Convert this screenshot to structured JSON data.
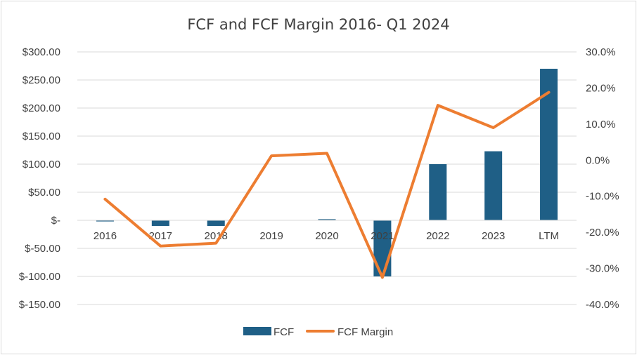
{
  "chart_data": {
    "type": "bar",
    "title": "FCF and FCF Margin 2016- Q1 2024",
    "categories": [
      "2016",
      "2017",
      "2018",
      "2019",
      "2020",
      "2021",
      "2022",
      "2023",
      "LTM"
    ],
    "series": [
      {
        "name": "FCF",
        "type": "bar",
        "axis": "left",
        "color": "#1f5f86",
        "values": [
          -2,
          -10,
          -10,
          0,
          2,
          -100,
          100,
          123,
          270
        ]
      },
      {
        "name": "FCF Margin",
        "type": "line",
        "axis": "right",
        "color": "#ed7d31",
        "values": [
          -10.8,
          -23.8,
          -23.0,
          1.2,
          1.9,
          -32.5,
          15.2,
          9.0,
          18.8
        ]
      }
    ],
    "left_axis": {
      "ylim": [
        -150,
        300
      ],
      "ticks": [
        300,
        250,
        200,
        150,
        100,
        50,
        0,
        -50,
        -100,
        -150
      ],
      "tick_labels": [
        "$300.00",
        "$250.00",
        "$200.00",
        "$150.00",
        "$100.00",
        "$50.00",
        "$-",
        "$-50.00",
        "$-100.00",
        "$-150.00"
      ]
    },
    "right_axis": {
      "ylim": [
        -40,
        30
      ],
      "tick_labels": [
        "30.0%",
        "20.0%",
        "10.0%",
        "0.0%",
        "-10.0%",
        "-20.0%",
        "-30.0%",
        "-40.0%"
      ]
    },
    "grid": true,
    "legend": "bottom",
    "legend_entries": [
      "FCF",
      "FCF Margin"
    ]
  }
}
